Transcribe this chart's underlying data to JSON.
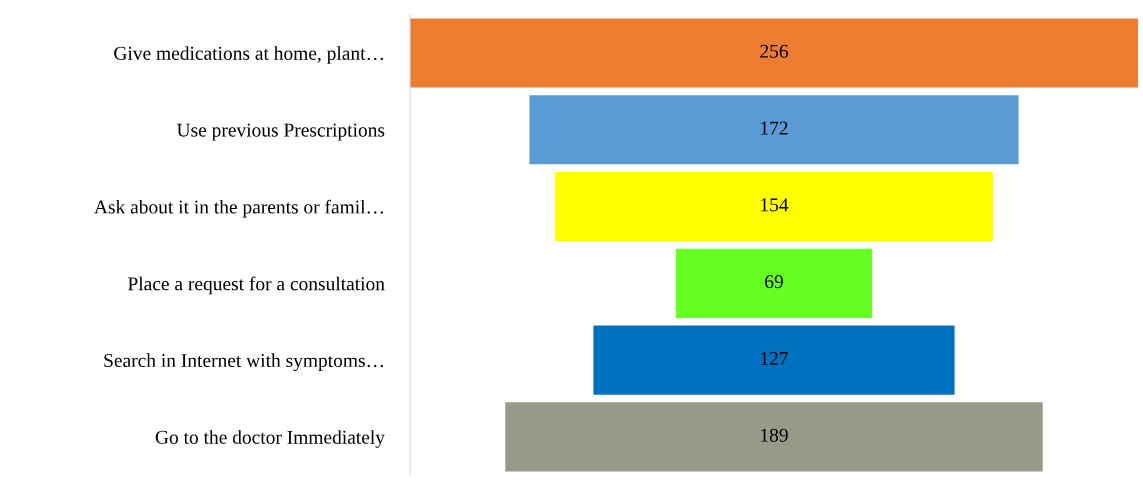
{
  "chart_data": {
    "type": "other",
    "categories": [
      "Give medications at home, plant…",
      "Use previous Prescriptions",
      "Ask about it in the parents or famil…",
      "Place a request for a consultation",
      "Search in Internet with symptoms…",
      "Go to the doctor Immediately"
    ],
    "values": [
      256,
      172,
      154,
      69,
      127,
      189
    ],
    "colors": [
      "#ed7d31",
      "#5b9bd5",
      "#ffff00",
      "#66ff22",
      "#0070c0",
      "#999988"
    ],
    "data_labels": true
  }
}
